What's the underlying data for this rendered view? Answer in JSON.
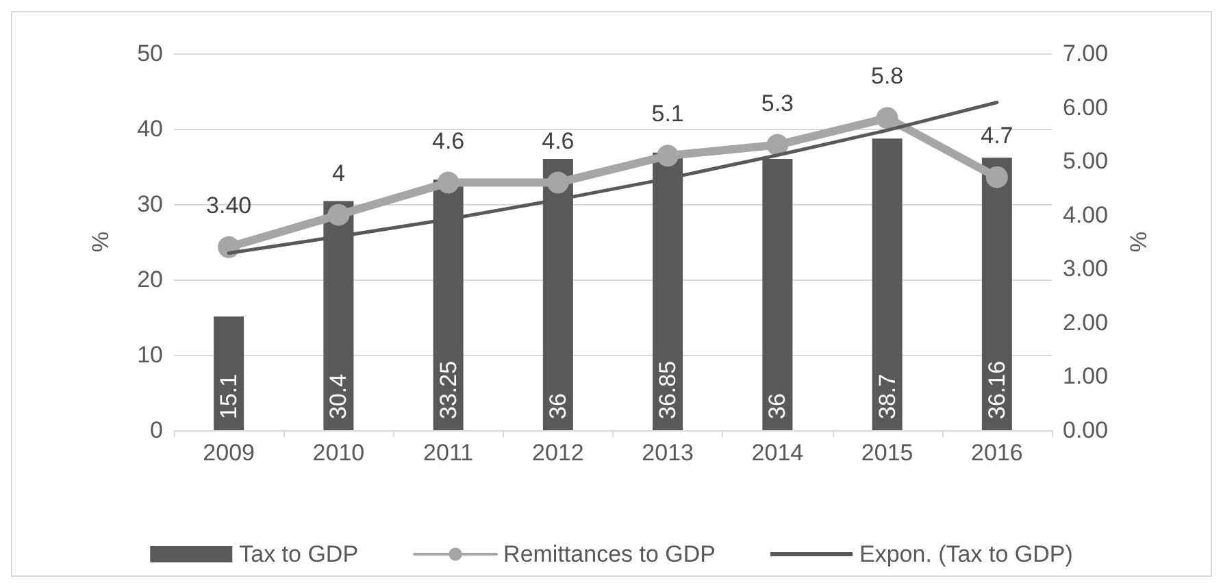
{
  "chart_data": {
    "type": "bar",
    "categories": [
      "2009",
      "2010",
      "2011",
      "2012",
      "2013",
      "2014",
      "2015",
      "2016"
    ],
    "ylabel": "%",
    "y2label": "%",
    "ylim": [
      0,
      50
    ],
    "yticks": [
      0,
      10,
      20,
      30,
      40,
      50
    ],
    "y2lim": [
      0,
      7
    ],
    "y2ticks": [
      {
        "value": 0,
        "label": "0.00"
      },
      {
        "value": 1,
        "label": "1.00"
      },
      {
        "value": 2,
        "label": "2.00"
      },
      {
        "value": 3,
        "label": "3.00"
      },
      {
        "value": 4,
        "label": "4.00"
      },
      {
        "value": 5,
        "label": "5.00"
      },
      {
        "value": 6,
        "label": "6.00"
      },
      {
        "value": 7,
        "label": "7.00"
      }
    ],
    "grid": "y",
    "legend": "bottom",
    "series": [
      {
        "name": "Tax to GDP",
        "color": "#595959",
        "values": [
          15.1,
          30.4,
          33.25,
          36,
          36.85,
          36,
          38.7,
          36.16
        ],
        "value_labels": [
          "15.1",
          "30.4",
          "33.25",
          "36",
          "36.85",
          "36",
          "38.7",
          "36.16"
        ]
      },
      {
        "name": "Remittances to GDP",
        "type": "line",
        "axis": "y2",
        "color": "#a6a6a6",
        "marker": "circle",
        "values": [
          3.4,
          4,
          4.6,
          4.6,
          5.1,
          5.3,
          5.8,
          4.7
        ],
        "value_labels": [
          "3.40",
          "4",
          "4.6",
          "4.6",
          "5.1",
          "5.3",
          "5.8",
          "4.7"
        ]
      },
      {
        "name": "Expon. (Tax to GDP)",
        "type": "line",
        "color": "#595959",
        "marker": "none",
        "values": [
          23.5,
          25.7,
          28.0,
          30.6,
          33.4,
          36.5,
          39.8,
          43.5
        ]
      }
    ]
  }
}
